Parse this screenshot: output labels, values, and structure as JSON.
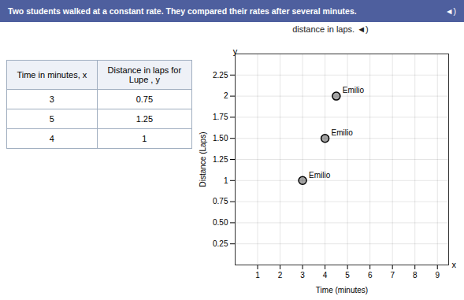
{
  "chart_data": {
    "type": "scatter",
    "title": "Two students walked at a constant rate. They compared their rates after several minutes.",
    "title_icon": "◄)",
    "subtitle": "distance in laps.  ◄)",
    "table": {
      "columns": [
        "Time in minutes, x",
        "Distance in laps for\nLupe , y"
      ],
      "rows": [
        [
          3,
          0.75
        ],
        [
          5,
          1.25
        ],
        [
          4,
          1
        ]
      ]
    },
    "x": [
      3,
      4,
      4.5
    ],
    "values": [
      1,
      1.5,
      2
    ],
    "labels": [
      "Emilio",
      "Emilio",
      "Emilio"
    ],
    "xlabel": "Time (minutes)",
    "ylabel": "Distance (Laps)",
    "xlim": [
      0,
      9.5
    ],
    "ylim": [
      0,
      2.5
    ],
    "xticks": [
      1,
      2,
      3,
      4,
      5,
      6,
      7,
      8,
      9
    ],
    "yticks": [
      0.25,
      {
        "value": 0.5,
        "label": "0.50"
      },
      0.75,
      1,
      1.25,
      {
        "value": 1.5,
        "label": "1.50"
      },
      1.75,
      2,
      2.25
    ],
    "annotations": [
      {
        "text": "x",
        "x": 9.5,
        "y": 0
      },
      {
        "text": "y",
        "x": 0,
        "y": 2.47
      }
    ],
    "grid": true
  }
}
